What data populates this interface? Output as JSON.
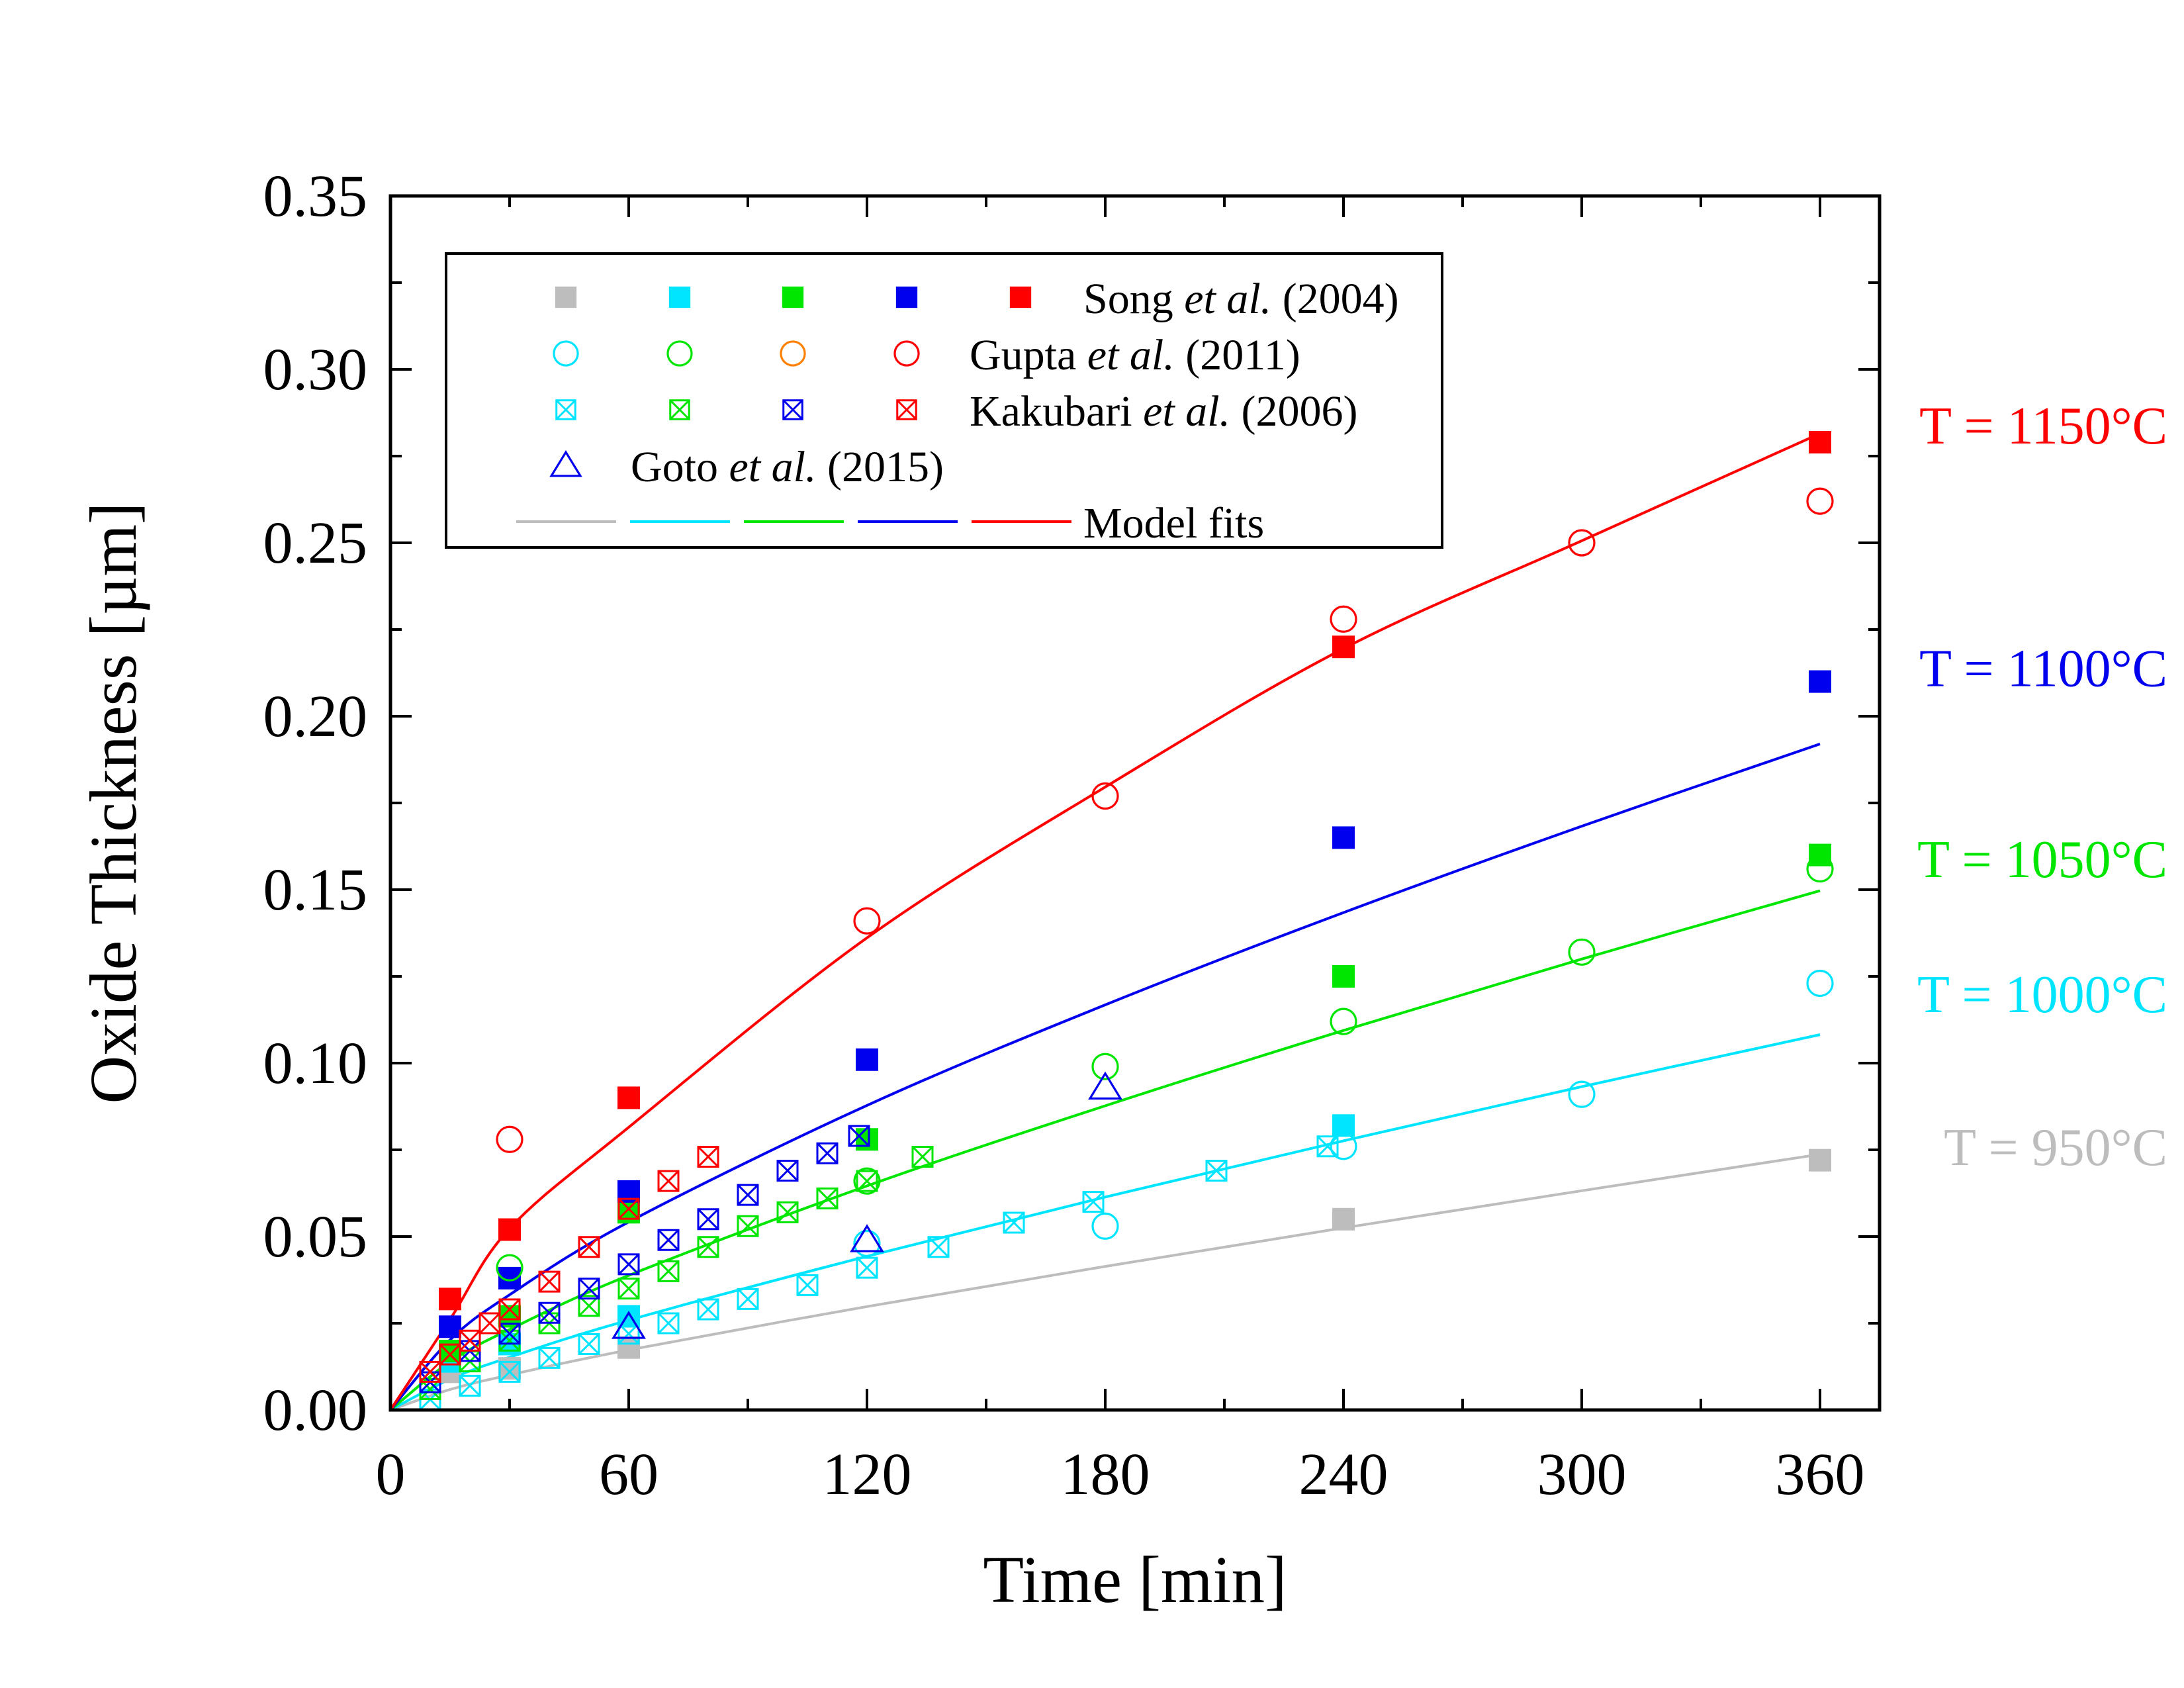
{
  "chart_data": {
    "type": "scatter",
    "xlabel": "Time [min]",
    "ylabel": "Oxide Thickness  [µm]",
    "xlim": [
      0,
      375
    ],
    "ylim": [
      0,
      0.35
    ],
    "xticks": [
      0,
      60,
      120,
      180,
      240,
      300,
      360
    ],
    "yticks": [
      0,
      0.05,
      0.1,
      0.15,
      0.2,
      0.25,
      0.3,
      0.35
    ],
    "ytick_labels": [
      "0.00",
      "0.05",
      "0.10",
      "0.15",
      "0.20",
      "0.25",
      "0.30",
      "0.35"
    ],
    "colors": {
      "T950": "#bdbdbd",
      "T1000": "#00e5ff",
      "T1050": "#00e600",
      "T1100": "#0000ee",
      "T1150": "#ff0000",
      "goto": "#0000ee",
      "gupta_orange": "#ff8000"
    },
    "temperature_labels": [
      {
        "text": "T = 1150°C",
        "color": "#ff0000",
        "y": 0.284
      },
      {
        "text": "T = 1100°C",
        "color": "#0000ee",
        "y": 0.214
      },
      {
        "text": "T = 1050°C",
        "color": "#00e600",
        "y": 0.159
      },
      {
        "text": "T = 1000°C",
        "color": "#00e5ff",
        "y": 0.12
      },
      {
        "text": "T = 950°C",
        "color": "#bdbdbd",
        "y": 0.076
      }
    ],
    "legend": {
      "position": "top-left",
      "entries": [
        {
          "label_pre": "Song ",
          "label_it": "et al.",
          "label_post": " (2004)",
          "marker": "filled-square",
          "colors": [
            "#bdbdbd",
            "#00e5ff",
            "#00e600",
            "#0000ee",
            "#ff0000"
          ]
        },
        {
          "label_pre": "Gupta ",
          "label_it": "et al.",
          "label_post": " (2011)",
          "marker": "circle",
          "colors": [
            "#00e5ff",
            "#00e600",
            "#ff8000",
            "#ff0000"
          ]
        },
        {
          "label_pre": "Kakubari ",
          "label_it": "et al.",
          "label_post": " (2006)",
          "marker": "x-square",
          "colors": [
            "#00e5ff",
            "#00e600",
            "#0000ee",
            "#ff0000"
          ]
        },
        {
          "label_pre": "Goto ",
          "label_it": "et al.",
          "label_post": " (2015)",
          "marker": "triangle",
          "colors": [
            "#0000ee"
          ]
        },
        {
          "label_pre": "Model fits",
          "label_it": "",
          "label_post": "",
          "marker": "line",
          "colors": [
            "#bdbdbd",
            "#00e5ff",
            "#00e600",
            "#0000ee",
            "#ff0000"
          ]
        }
      ]
    },
    "series": [
      {
        "name": "Model fit 950°C",
        "kind": "line",
        "color": "#bdbdbd",
        "x": [
          0,
          15,
          30,
          60,
          120,
          180,
          240,
          300,
          360
        ],
        "y": [
          0,
          0.0059,
          0.0101,
          0.0173,
          0.0298,
          0.0414,
          0.0525,
          0.0632,
          0.0737
        ]
      },
      {
        "name": "Model fit 1000°C",
        "kind": "line",
        "color": "#00e5ff",
        "x": [
          0,
          15,
          30,
          60,
          120,
          180,
          240,
          300,
          360
        ],
        "y": [
          0,
          0.0089,
          0.0152,
          0.0259,
          0.0443,
          0.0614,
          0.0776,
          0.0932,
          0.1082
        ]
      },
      {
        "name": "Model fit 1050°C",
        "kind": "line",
        "color": "#00e600",
        "x": [
          0,
          15,
          30,
          60,
          120,
          180,
          240,
          300,
          360
        ],
        "y": [
          0,
          0.0139,
          0.0232,
          0.0388,
          0.0646,
          0.0877,
          0.1094,
          0.13,
          0.1497
        ]
      },
      {
        "name": "Model fit 1100°C",
        "kind": "line",
        "color": "#0000ee",
        "x": [
          0,
          15,
          30,
          60,
          120,
          180,
          240,
          300,
          360
        ],
        "y": [
          0,
          0.0202,
          0.0332,
          0.0542,
          0.0878,
          0.1168,
          0.1434,
          0.1683,
          0.192
        ]
      },
      {
        "name": "Model fit 1150°C",
        "kind": "line",
        "color": "#ff0000",
        "x": [
          0,
          15,
          30,
          60,
          120,
          180,
          240,
          300,
          360
        ],
        "y": [
          0,
          0.0261,
          0.0523,
          0.0815,
          0.1361,
          0.1796,
          0.2195,
          0.2506,
          0.2815
        ]
      },
      {
        "name": "Song 950°C",
        "kind": "scatter",
        "marker": "filled-square",
        "color": "#bdbdbd",
        "x": [
          15,
          30,
          60,
          240,
          360
        ],
        "y": [
          0.011,
          0.012,
          0.018,
          0.055,
          0.072
        ]
      },
      {
        "name": "Song 1000°C",
        "kind": "scatter",
        "marker": "filled-square",
        "color": "#00e5ff",
        "x": [
          15,
          30,
          60,
          240
        ],
        "y": [
          0.014,
          0.019,
          0.027,
          0.082
        ]
      },
      {
        "name": "Song 1050°C",
        "kind": "scatter",
        "marker": "filled-square",
        "color": "#00e600",
        "x": [
          15,
          30,
          60,
          120,
          240,
          360
        ],
        "y": [
          0.017,
          0.027,
          0.057,
          0.078,
          0.125,
          0.16
        ]
      },
      {
        "name": "Song 1100°C",
        "kind": "scatter",
        "marker": "filled-square",
        "color": "#0000ee",
        "x": [
          15,
          30,
          60,
          120,
          240,
          360
        ],
        "y": [
          0.024,
          0.038,
          0.063,
          0.101,
          0.165,
          0.21
        ]
      },
      {
        "name": "Song 1150°C",
        "kind": "scatter",
        "marker": "filled-square",
        "color": "#ff0000",
        "x": [
          15,
          30,
          60,
          240,
          360
        ],
        "y": [
          0.032,
          0.052,
          0.09,
          0.22,
          0.279
        ]
      },
      {
        "name": "Gupta 1000°C",
        "kind": "scatter",
        "marker": "circle",
        "color": "#00e5ff",
        "x": [
          120,
          180,
          240,
          300,
          360
        ],
        "y": [
          0.048,
          0.053,
          0.076,
          0.091,
          0.123
        ]
      },
      {
        "name": "Gupta 1050°C",
        "kind": "scatter",
        "marker": "circle",
        "color": "#00e600",
        "x": [
          30,
          120,
          180,
          240,
          300,
          360
        ],
        "y": [
          0.041,
          0.066,
          0.099,
          0.112,
          0.132,
          0.156
        ]
      },
      {
        "name": "Gupta 1150°C",
        "kind": "scatter",
        "marker": "circle",
        "color": "#ff0000",
        "x": [
          30,
          120,
          180,
          240,
          300,
          360
        ],
        "y": [
          0.078,
          0.141,
          0.177,
          0.228,
          0.25,
          0.262
        ]
      },
      {
        "name": "Kakubari 1000°C",
        "kind": "scatter",
        "marker": "x-square",
        "color": "#00e5ff",
        "x": [
          10,
          20,
          30,
          40,
          50,
          60,
          70,
          80,
          90,
          105,
          120,
          138,
          157,
          177,
          208,
          236
        ],
        "y": [
          0.003,
          0.007,
          0.011,
          0.015,
          0.019,
          0.022,
          0.025,
          0.029,
          0.032,
          0.036,
          0.041,
          0.047,
          0.054,
          0.06,
          0.069,
          0.076
        ]
      },
      {
        "name": "Kakubari 1050°C",
        "kind": "scatter",
        "marker": "x-square",
        "color": "#00e600",
        "x": [
          10,
          20,
          30,
          40,
          50,
          60,
          70,
          80,
          90,
          100,
          110,
          120,
          134
        ],
        "y": [
          0.006,
          0.014,
          0.02,
          0.025,
          0.03,
          0.035,
          0.04,
          0.047,
          0.053,
          0.057,
          0.061,
          0.066,
          0.073
        ]
      },
      {
        "name": "Kakubari 1100°C",
        "kind": "scatter",
        "marker": "x-square",
        "color": "#0000ee",
        "x": [
          10,
          20,
          30,
          40,
          50,
          60,
          70,
          80,
          90,
          100,
          110,
          118
        ],
        "y": [
          0.008,
          0.017,
          0.022,
          0.028,
          0.035,
          0.042,
          0.049,
          0.055,
          0.062,
          0.069,
          0.074,
          0.079
        ]
      },
      {
        "name": "Kakubari 1150°C",
        "kind": "scatter",
        "marker": "x-square",
        "color": "#ff0000",
        "x": [
          10,
          15,
          20,
          25,
          30,
          40,
          50,
          60,
          70,
          80
        ],
        "y": [
          0.011,
          0.016,
          0.02,
          0.025,
          0.029,
          0.037,
          0.047,
          0.058,
          0.066,
          0.073
        ]
      },
      {
        "name": "Goto 1100°C",
        "kind": "scatter",
        "marker": "triangle",
        "color": "#0000ee",
        "x": [
          60,
          120,
          180
        ],
        "y": [
          0.024,
          0.049,
          0.093
        ]
      }
    ]
  }
}
